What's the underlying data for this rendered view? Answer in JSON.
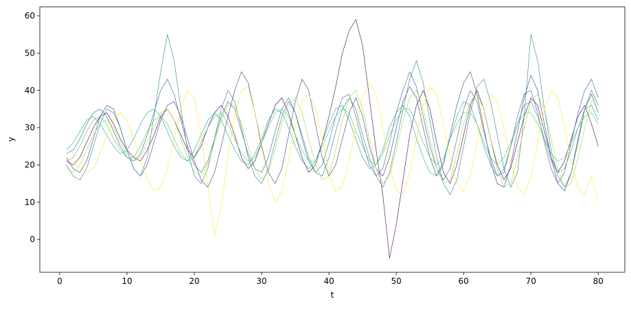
{
  "chart_data": {
    "type": "line",
    "x_label": "t",
    "y_label": "y",
    "x": [
      1,
      2,
      3,
      4,
      5,
      6,
      7,
      8,
      9,
      10,
      11,
      12,
      13,
      14,
      15,
      16,
      17,
      18,
      19,
      20,
      21,
      22,
      23,
      24,
      25,
      26,
      27,
      28,
      29,
      30,
      31,
      32,
      33,
      34,
      35,
      36,
      37,
      38,
      39,
      40,
      41,
      42,
      43,
      44,
      45,
      46,
      47,
      48,
      49,
      50,
      51,
      52,
      53,
      54,
      55,
      56,
      57,
      58,
      59,
      60,
      61,
      62,
      63,
      64,
      65,
      66,
      67,
      68,
      69,
      70,
      71,
      72,
      73,
      74,
      75,
      76,
      77,
      78,
      79,
      80
    ],
    "xlim": [
      -2.95,
      83.95
    ],
    "xticks": [
      0,
      10,
      20,
      30,
      40,
      50,
      60,
      70,
      80
    ],
    "ylim": [
      -8.8,
      62.4
    ],
    "yticks": [
      0,
      10,
      20,
      30,
      40,
      50,
      60
    ],
    "series": [
      {
        "color": "#440154",
        "values": [
          21,
          20,
          22,
          26,
          30,
          33,
          34,
          31,
          27,
          24,
          22,
          21,
          24,
          28,
          33,
          35,
          32,
          28,
          24,
          22,
          25,
          30,
          34,
          36,
          33,
          28,
          22,
          19,
          21,
          26,
          31,
          36,
          38,
          34,
          28,
          22,
          18,
          20,
          26,
          33,
          41,
          50,
          56,
          59,
          52,
          38,
          24,
          12,
          -5,
          4,
          16,
          28,
          36,
          40,
          35,
          26,
          18,
          15,
          20,
          28,
          36,
          40,
          35,
          27,
          20,
          16,
          19,
          26,
          33,
          38,
          36,
          29,
          22,
          18,
          21,
          27,
          33,
          36,
          31,
          25
        ]
      },
      {
        "color": "#46327e",
        "values": [
          22,
          19,
          18,
          21,
          27,
          33,
          36,
          35,
          30,
          24,
          19,
          17,
          20,
          26,
          32,
          36,
          37,
          33,
          27,
          21,
          16,
          14,
          18,
          25,
          33,
          40,
          45,
          42,
          34,
          25,
          18,
          15,
          19,
          28,
          37,
          43,
          40,
          31,
          22,
          17,
          20,
          27,
          34,
          38,
          33,
          25,
          19,
          17,
          22,
          30,
          37,
          41,
          38,
          30,
          22,
          17,
          20,
          28,
          36,
          42,
          45,
          39,
          30,
          21,
          15,
          14,
          20,
          29,
          38,
          44,
          40,
          31,
          22,
          15,
          13,
          18,
          27,
          35,
          39,
          34
        ]
      },
      {
        "color": "#365c8d",
        "values": [
          23,
          24,
          27,
          31,
          34,
          35,
          33,
          29,
          25,
          22,
          21,
          23,
          28,
          34,
          40,
          43,
          39,
          32,
          25,
          20,
          18,
          21,
          27,
          33,
          37,
          35,
          29,
          23,
          19,
          18,
          22,
          29,
          35,
          38,
          34,
          27,
          21,
          18,
          20,
          26,
          33,
          38,
          39,
          33,
          26,
          20,
          17,
          19,
          26,
          34,
          40,
          45,
          41,
          33,
          25,
          19,
          16,
          19,
          27,
          35,
          40,
          37,
          29,
          22,
          17,
          18,
          25,
          33,
          39,
          40,
          34,
          26,
          19,
          15,
          18,
          26,
          34,
          40,
          43,
          38
        ]
      },
      {
        "color": "#277f8e",
        "values": [
          20,
          17,
          16,
          19,
          25,
          31,
          35,
          34,
          30,
          24,
          19,
          17,
          22,
          33,
          45,
          55,
          48,
          35,
          24,
          17,
          15,
          19,
          27,
          35,
          40,
          37,
          30,
          22,
          17,
          15,
          19,
          26,
          33,
          37,
          34,
          28,
          22,
          18,
          17,
          22,
          29,
          35,
          38,
          35,
          28,
          22,
          17,
          14,
          18,
          26,
          35,
          43,
          48,
          42,
          32,
          22,
          15,
          12,
          16,
          25,
          34,
          41,
          43,
          37,
          28,
          19,
          14,
          18,
          33,
          55,
          48,
          35,
          24,
          17,
          14,
          18,
          26,
          35,
          40,
          36
        ]
      },
      {
        "color": "#1fa187",
        "values": [
          24,
          26,
          29,
          32,
          33,
          31,
          28,
          25,
          23,
          24,
          27,
          31,
          34,
          35,
          33,
          29,
          25,
          22,
          21,
          24,
          28,
          32,
          34,
          32,
          28,
          24,
          21,
          20,
          23,
          27,
          32,
          35,
          34,
          30,
          25,
          21,
          19,
          21,
          26,
          31,
          35,
          36,
          32,
          27,
          22,
          19,
          20,
          24,
          30,
          34,
          36,
          33,
          27,
          22,
          18,
          17,
          21,
          27,
          33,
          37,
          36,
          31,
          25,
          20,
          17,
          19,
          25,
          31,
          36,
          37,
          33,
          27,
          21,
          18,
          19,
          24,
          30,
          35,
          36,
          32
        ]
      },
      {
        "color": "#4ac16d",
        "values": [
          21,
          22,
          25,
          29,
          32,
          33,
          31,
          27,
          24,
          22,
          22,
          25,
          29,
          32,
          33,
          31,
          27,
          23,
          21,
          22,
          26,
          30,
          33,
          34,
          31,
          27,
          23,
          21,
          22,
          26,
          30,
          34,
          35,
          33,
          28,
          24,
          21,
          21,
          25,
          29,
          33,
          35,
          34,
          29,
          25,
          21,
          20,
          23,
          28,
          32,
          35,
          35,
          31,
          26,
          22,
          20,
          22,
          27,
          31,
          34,
          34,
          31,
          26,
          22,
          20,
          22,
          26,
          31,
          34,
          34,
          31,
          27,
          23,
          21,
          22,
          26,
          30,
          33,
          34,
          31
        ]
      },
      {
        "color": "#a0da39",
        "values": [
          19,
          18,
          20,
          24,
          28,
          31,
          32,
          30,
          26,
          23,
          21,
          22,
          26,
          30,
          34,
          35,
          32,
          27,
          22,
          18,
          17,
          20,
          26,
          32,
          36,
          36,
          31,
          25,
          19,
          16,
          18,
          24,
          31,
          36,
          38,
          34,
          27,
          20,
          16,
          17,
          24,
          32,
          38,
          40,
          35,
          27,
          19,
          15,
          17,
          24,
          32,
          38,
          40,
          35,
          27,
          19,
          15,
          16,
          23,
          31,
          37,
          39,
          35,
          27,
          19,
          14,
          15,
          22,
          30,
          37,
          39,
          35,
          27,
          19,
          14,
          15,
          22,
          30,
          37,
          39
        ]
      },
      {
        "color": "#fde725",
        "values": [
          22,
          21,
          19,
          18,
          19,
          23,
          28,
          32,
          34,
          32,
          27,
          21,
          16,
          13,
          14,
          19,
          27,
          35,
          40,
          38,
          28,
          15,
          1,
          9,
          22,
          33,
          40,
          41,
          34,
          24,
          15,
          10,
          13,
          21,
          30,
          37,
          39,
          35,
          27,
          18,
          13,
          14,
          21,
          30,
          38,
          42,
          39,
          30,
          20,
          13,
          12,
          18,
          27,
          36,
          41,
          39,
          31,
          22,
          15,
          13,
          17,
          26,
          34,
          39,
          37,
          30,
          21,
          14,
          12,
          17,
          26,
          35,
          40,
          38,
          30,
          21,
          14,
          12,
          17,
          10
        ]
      }
    ]
  }
}
